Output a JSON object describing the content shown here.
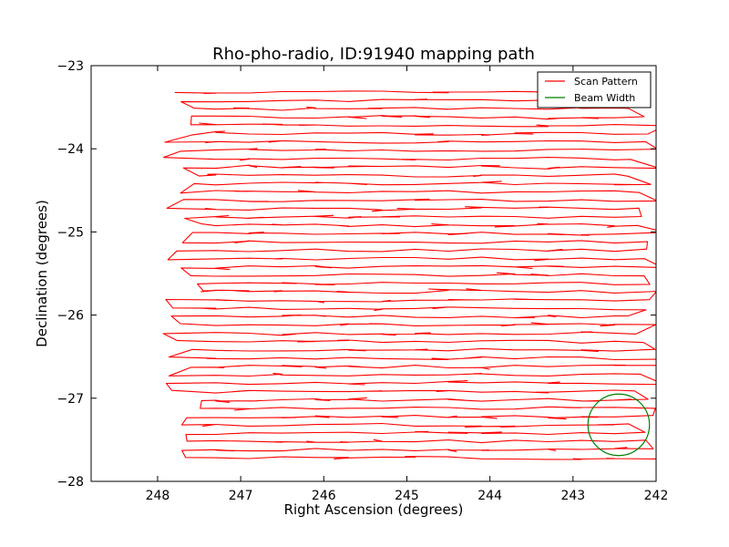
{
  "chart_data": {
    "type": "line",
    "title": "Rho-pho-radio, ID:91940 mapping path",
    "xlabel": "Right Ascension (degrees)",
    "ylabel": "Declination (degrees)",
    "xlim": [
      248.8,
      242.0
    ],
    "ylim": [
      -28.0,
      -23.0
    ],
    "x_inverted": true,
    "x_ticks": [
      248,
      247,
      246,
      245,
      244,
      243,
      242
    ],
    "y_ticks": [
      -23,
      -24,
      -25,
      -26,
      -27,
      -28
    ],
    "x_tick_labels": [
      "248",
      "247",
      "246",
      "245",
      "244",
      "243",
      "242"
    ],
    "y_tick_labels": [
      "−23",
      "−24",
      "−25",
      "−26",
      "−27",
      "−28"
    ],
    "grid": false,
    "legend_position": "top-right",
    "series": [
      {
        "name": "Scan Pattern",
        "color": "#ff0000",
        "pattern": "raster",
        "ra_start": 247.7,
        "ra_end": 242.1,
        "dec_start": -23.32,
        "dec_end": -27.68,
        "line_spacing_deg": 0.1
      },
      {
        "name": "Beam Width",
        "color": "#008000",
        "shape": "circle",
        "center_ra": 242.45,
        "center_dec": -27.32,
        "radius_deg": 0.37
      }
    ]
  }
}
